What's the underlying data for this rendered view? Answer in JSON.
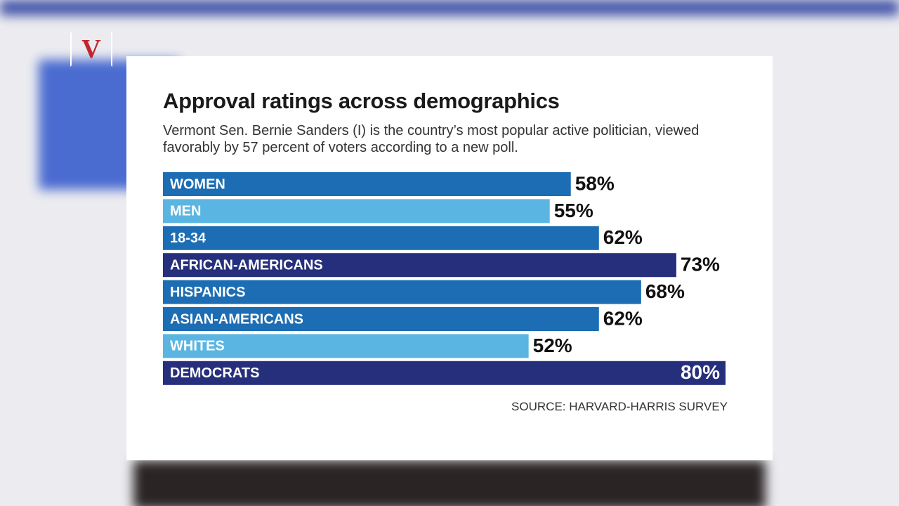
{
  "chart_data": {
    "type": "bar",
    "orientation": "horizontal",
    "title": "Approval ratings across demographics",
    "subtitle": "Vermont Sen. Bernie Sanders (I) is the country’s most popular active politician, viewed favorably by 57 percent of voters according to a new poll.",
    "source": "SOURCE: HARVARD-HARRIS SURVEY",
    "categories": [
      "WOMEN",
      "MEN",
      "18-34",
      "AFRICAN-AMERICANS",
      "HISPANICS",
      "ASIAN-AMERICANS",
      "WHITES",
      "DEMOCRATS"
    ],
    "values": [
      58,
      55,
      62,
      73,
      68,
      62,
      52,
      80
    ],
    "value_labels": [
      "58%",
      "55%",
      "62%",
      "73%",
      "68%",
      "62%",
      "52%",
      "80%"
    ],
    "colors": [
      "#1c6db3",
      "#5bb5e2",
      "#1c6db3",
      "#252f7c",
      "#1c6db3",
      "#1c6db3",
      "#5bb5e2",
      "#252f7c"
    ]
  }
}
